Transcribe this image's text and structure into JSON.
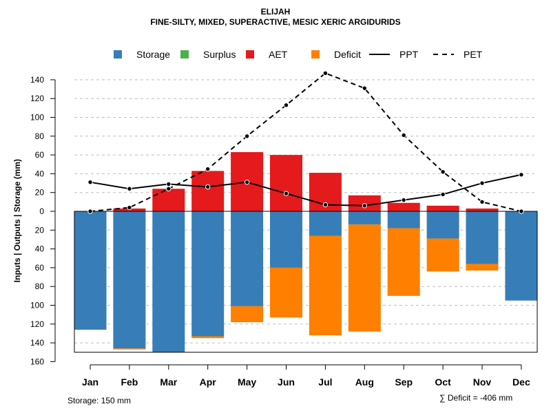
{
  "title_line1": "ELIJAH",
  "title_line2": "FINE-SILTY, MIXED, SUPERACTIVE, MESIC XERIC ARGIDURIDS",
  "storage_note": "Storage: 150 mm",
  "deficit_note": "∑ Deficit = -406 mm",
  "chart_data": {
    "type": "bar",
    "ylabel": "Inputs | Outputs | Storage    (mm)",
    "ylim": [
      -160,
      150
    ],
    "yticks": [
      140,
      120,
      100,
      80,
      60,
      40,
      20,
      0,
      -20,
      -40,
      -60,
      -80,
      -100,
      -120,
      -140,
      -160
    ],
    "ytick_labels": [
      "140",
      "120",
      "100",
      "80",
      "60",
      "40",
      "20",
      "0",
      "20",
      "40",
      "60",
      "80",
      "100",
      "120",
      "140",
      "160"
    ],
    "categories": [
      "Jan",
      "Feb",
      "Mar",
      "Apr",
      "May",
      "Jun",
      "Jul",
      "Aug",
      "Sep",
      "Oct",
      "Nov",
      "Dec"
    ],
    "legend": [
      {
        "name": "Storage",
        "kind": "box",
        "color": "#377EB8"
      },
      {
        "name": "Surplus",
        "kind": "box",
        "color": "#4DAF4A"
      },
      {
        "name": "AET",
        "kind": "box",
        "color": "#E41A1C"
      },
      {
        "name": "Deficit",
        "kind": "box",
        "color": "#FF7F00"
      },
      {
        "name": "PPT",
        "kind": "solid",
        "color": "#000000"
      },
      {
        "name": "PET",
        "kind": "dashed",
        "color": "#000000"
      }
    ],
    "storage": [
      126,
      146,
      150,
      133,
      101,
      60,
      26,
      14,
      18,
      29,
      56,
      95
    ],
    "deficit": [
      0,
      1,
      0,
      2,
      17,
      53,
      106,
      114,
      72,
      35,
      7,
      0
    ],
    "surplus": [
      0,
      0,
      0,
      0,
      0,
      0,
      0,
      0,
      0,
      0,
      0,
      0
    ],
    "aet": [
      0,
      3,
      24,
      43,
      63,
      60,
      41,
      17,
      9,
      6,
      3,
      0
    ],
    "ppt": [
      31,
      24,
      29,
      26,
      31,
      19,
      7,
      6,
      12,
      18,
      30,
      39
    ],
    "pet": [
      0,
      4,
      24,
      45,
      80,
      113,
      147,
      131,
      81,
      42,
      10,
      0
    ],
    "colors": {
      "storage": "#377EB8",
      "surplus": "#4DAF4A",
      "aet": "#E41A1C",
      "deficit": "#FF7F00",
      "grid": "#BEBEBE"
    }
  }
}
